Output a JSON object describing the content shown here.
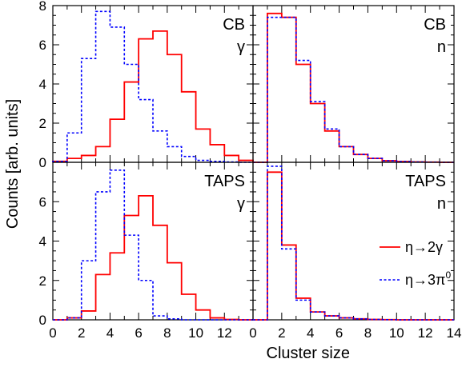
{
  "chart_data": {
    "type": "line",
    "xlabel": "Cluster size",
    "ylabel": "Counts [arb. units]",
    "xlim": [
      0,
      14
    ],
    "ylim": [
      0,
      8
    ],
    "x_ticks": [
      "0",
      "2",
      "4",
      "6",
      "8",
      "10",
      "12",
      "14"
    ],
    "x_ticks_left": [
      "0",
      "2",
      "4",
      "6",
      "8",
      "10",
      "12"
    ],
    "y_ticks": [
      "0",
      "2",
      "4",
      "6",
      "8"
    ],
    "y_ticks_lower": [
      "0",
      "2",
      "4",
      "6"
    ],
    "bin_edges": [
      0,
      1,
      2,
      3,
      4,
      5,
      6,
      7,
      8,
      9,
      10,
      11,
      12,
      13,
      14
    ],
    "colors": {
      "eta2g": "#ff0000",
      "eta3pi0": "#0000ff"
    },
    "legend": {
      "eta2g": {
        "arrow": "η→2γ"
      },
      "eta3pi0": {
        "base": "η→3π",
        "sup": "0"
      },
      "placement": "lower-right panel, right"
    },
    "panels": [
      {
        "detector": "CB",
        "particle": "γ",
        "series": [
          {
            "key": "eta2g",
            "style": "solid",
            "values": [
              0.05,
              0.2,
              0.35,
              0.8,
              2.2,
              4.1,
              6.3,
              6.7,
              5.5,
              3.6,
              1.7,
              0.9,
              0.35,
              0.1
            ]
          },
          {
            "key": "eta3pi0",
            "style": "dashed",
            "values": [
              0.05,
              1.5,
              5.3,
              7.7,
              6.9,
              5.0,
              3.2,
              1.6,
              0.8,
              0.3,
              0.1,
              0.05,
              0.02,
              0.0
            ]
          }
        ]
      },
      {
        "detector": "CB",
        "particle": "n",
        "series": [
          {
            "key": "eta2g",
            "style": "solid",
            "values": [
              0.0,
              7.6,
              7.4,
              5.0,
              3.0,
              1.6,
              0.8,
              0.4,
              0.2,
              0.08,
              0.04,
              0.02,
              0.01,
              0.0
            ]
          },
          {
            "key": "eta3pi0",
            "style": "dashed",
            "values": [
              0.0,
              7.4,
              7.4,
              5.2,
              3.1,
              1.7,
              0.8,
              0.4,
              0.2,
              0.08,
              0.04,
              0.02,
              0.01,
              0.0
            ]
          }
        ]
      },
      {
        "detector": "TAPS",
        "particle": "γ",
        "series": [
          {
            "key": "eta2g",
            "style": "solid",
            "values": [
              0.0,
              0.1,
              0.45,
              2.3,
              3.4,
              5.3,
              6.3,
              4.8,
              2.9,
              1.3,
              0.5,
              0.1,
              0.02,
              0.0
            ]
          },
          {
            "key": "eta3pi0",
            "style": "dashed",
            "values": [
              0.0,
              0.1,
              3.0,
              6.5,
              7.6,
              4.3,
              2.0,
              0.2,
              0.05,
              0.0,
              0.0,
              0.0,
              0.0,
              0.0
            ]
          }
        ]
      },
      {
        "detector": "TAPS",
        "particle": "n",
        "series": [
          {
            "key": "eta2g",
            "style": "solid",
            "values": [
              0.0,
              7.5,
              3.8,
              1.1,
              0.4,
              0.2,
              0.1,
              0.05,
              0.02,
              0.01,
              0.0,
              0.0,
              0.0,
              0.0
            ]
          },
          {
            "key": "eta3pi0",
            "style": "dashed",
            "values": [
              0.0,
              7.8,
              3.6,
              1.0,
              0.4,
              0.2,
              0.1,
              0.05,
              0.02,
              0.01,
              0.0,
              0.0,
              0.0,
              0.0
            ]
          }
        ]
      }
    ]
  }
}
